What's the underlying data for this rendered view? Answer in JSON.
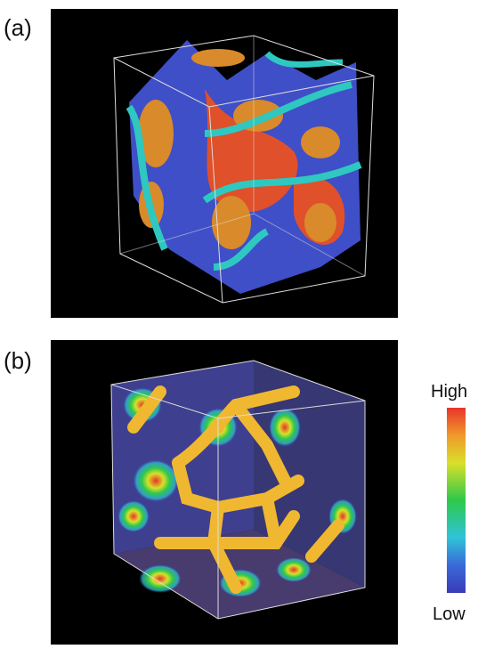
{
  "panels": [
    {
      "label": "(a)"
    },
    {
      "label": "(b)"
    }
  ],
  "colorbar": {
    "high_label": "High",
    "low_label": "Low"
  }
}
